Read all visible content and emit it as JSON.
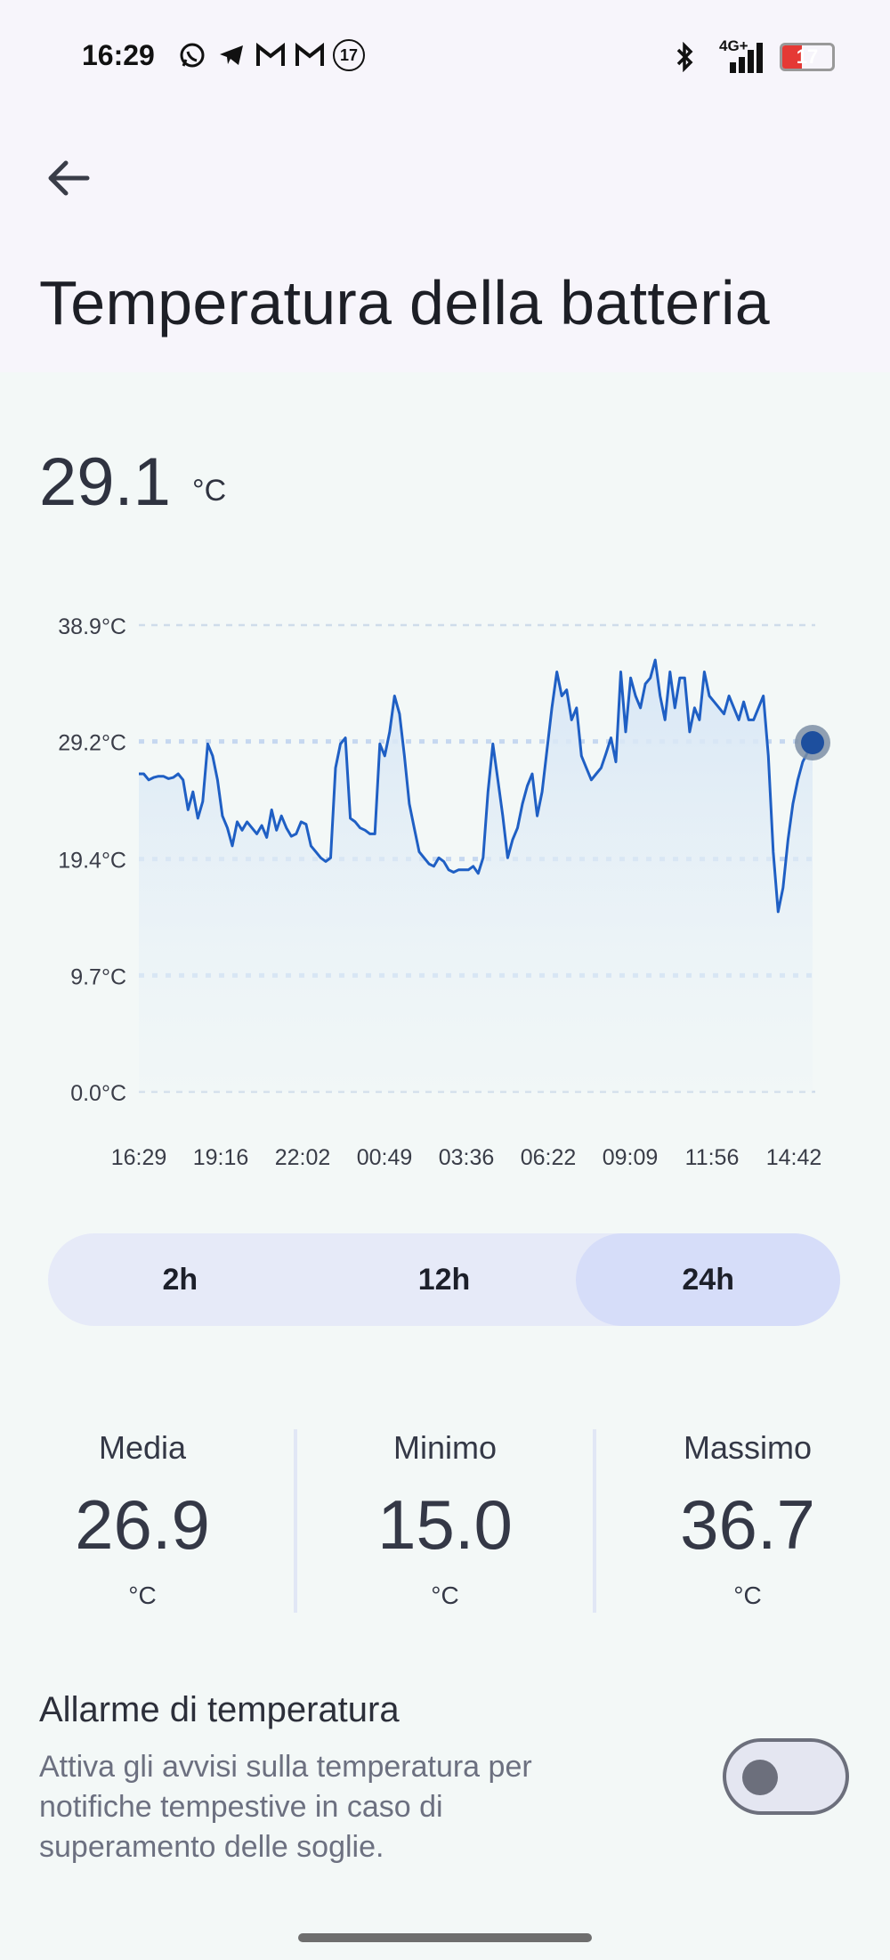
{
  "status_bar": {
    "time": "16:29",
    "left_icons": [
      "whatsapp-icon",
      "telegram-icon",
      "gmail-icon",
      "gmail-icon",
      "notification-count-icon"
    ],
    "notification_count": "17",
    "network_label": "4G+",
    "battery_level": "17",
    "battery_color": "#e53935"
  },
  "header": {
    "title": "Temperatura della batteria"
  },
  "current": {
    "value": "29.1",
    "unit": "°C"
  },
  "chart_data": {
    "type": "area",
    "title": "",
    "xlabel": "",
    "ylabel": "",
    "y_tick_labels": [
      "38.9°C",
      "29.2°C",
      "19.4°C",
      "9.7°C",
      "0.0°C"
    ],
    "y_ticks": [
      38.9,
      29.2,
      19.4,
      9.7,
      0.0
    ],
    "x_tick_labels": [
      "16:29",
      "19:16",
      "22:02",
      "00:49",
      "03:36",
      "06:22",
      "09:09",
      "11:56",
      "14:42"
    ],
    "ylim": [
      0,
      38.9
    ],
    "grid": true,
    "line_color": "#1f5fc4",
    "fill_color": "#dbe8f6",
    "series": [
      {
        "values": [
          26.5,
          26.5,
          26,
          26.2,
          26.3,
          26.3,
          26.1,
          26.2,
          26.5,
          26.0,
          23.5,
          25,
          22.8,
          24.2,
          29,
          28,
          26,
          23,
          22,
          20.5,
          22.5,
          21.8,
          22.5,
          22,
          21.5,
          22.2,
          21.2,
          23.5,
          21.8,
          23,
          22,
          21.3,
          21.5,
          22.5,
          22.3,
          20.5,
          20,
          19.5,
          19.2,
          19.5,
          27,
          29,
          29.5,
          22.8,
          22.5,
          22,
          21.8,
          21.5,
          21.5,
          29,
          28,
          30,
          33,
          31.5,
          28,
          24,
          22,
          20,
          19.5,
          19,
          18.8,
          19.5,
          19.2,
          18.5,
          18.3,
          18.5,
          18.5,
          18.5,
          18.8,
          18.2,
          19.5,
          25,
          29,
          26,
          23,
          19.5,
          21,
          22,
          24,
          25.5,
          26.5,
          23,
          25,
          28.5,
          32,
          35,
          33,
          33.5,
          31,
          32,
          28,
          27,
          26,
          26.5,
          27,
          28.2,
          29.5,
          27.5,
          35,
          30,
          34.5,
          33,
          32,
          34,
          34.5,
          36,
          33,
          31,
          35,
          32,
          34.5,
          34.5,
          30,
          32,
          31,
          35,
          33,
          32.5,
          32,
          31.5,
          33,
          32,
          31,
          32.5,
          31,
          31,
          32,
          33,
          28,
          20,
          15,
          17,
          21,
          24,
          26,
          27.5,
          28.3,
          29.1
        ]
      }
    ]
  },
  "range_selector": {
    "options": [
      "2h",
      "12h",
      "24h"
    ],
    "selected": "24h"
  },
  "stats": {
    "average": {
      "label": "Media",
      "value": "26.9",
      "unit": "°C"
    },
    "minimum": {
      "label": "Minimo",
      "value": "15.0",
      "unit": "°C"
    },
    "maximum": {
      "label": "Massimo",
      "value": "36.7",
      "unit": "°C"
    }
  },
  "alarm": {
    "title": "Allarme di temperatura",
    "description": "Attiva gli avvisi sulla temperatura per notifiche tempestive in caso di superamento delle soglie.",
    "enabled": false
  }
}
